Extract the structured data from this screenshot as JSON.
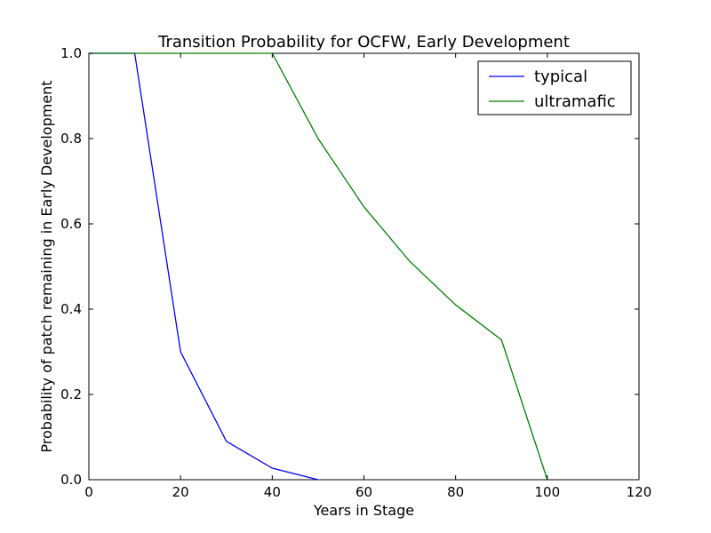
{
  "chart_data": {
    "type": "line",
    "title": "Transition Probability for OCFW, Early Development",
    "xlabel": "Years in Stage",
    "ylabel": "Probability of patch remaining in Early Development",
    "xlim": [
      0,
      120
    ],
    "ylim": [
      0.0,
      1.0
    ],
    "xticks": [
      0,
      20,
      40,
      60,
      80,
      100,
      120
    ],
    "xtick_labels": [
      "0",
      "20",
      "40",
      "60",
      "80",
      "100",
      "120"
    ],
    "yticks": [
      0.0,
      0.2,
      0.4,
      0.6,
      0.8,
      1.0
    ],
    "ytick_labels": [
      "0.0",
      "0.2",
      "0.4",
      "0.6",
      "0.8",
      "1.0"
    ],
    "grid": false,
    "legend_position": "top-right",
    "series": [
      {
        "name": "typical",
        "color": "#0000ff",
        "x": [
          0,
          10,
          20,
          30,
          40,
          50
        ],
        "y": [
          1.0,
          1.0,
          0.3,
          0.09,
          0.027,
          0.0
        ]
      },
      {
        "name": "ultramafic",
        "color": "#008000",
        "x": [
          0,
          10,
          20,
          30,
          40,
          50,
          60,
          70,
          80,
          90,
          100
        ],
        "y": [
          1.0,
          1.0,
          1.0,
          1.0,
          1.0,
          0.8,
          0.64,
          0.512,
          0.41,
          0.328,
          0.0
        ]
      }
    ]
  }
}
